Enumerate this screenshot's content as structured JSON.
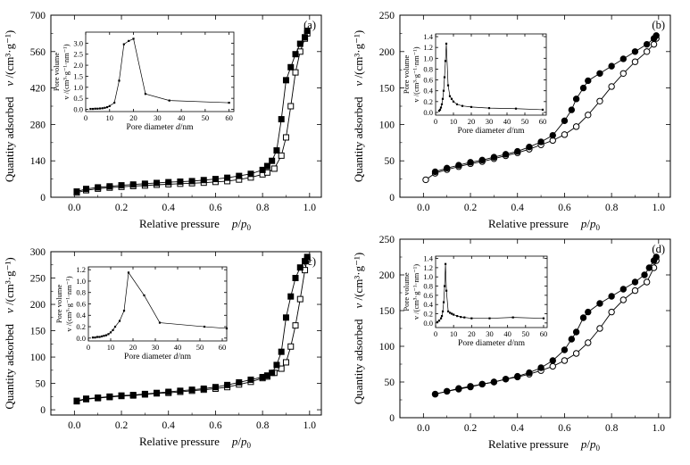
{
  "figure": {
    "panels": [
      {
        "id": "a",
        "panel_label": "(a)",
        "xlabel": "Relative pressure",
        "xlabel_math_main": "p",
        "xlabel_math_slash": "/",
        "xlabel_math_p0": "p",
        "xlabel_math_sub": "0",
        "ylabel": "Quantity adsorbed",
        "ylabel_math_v": "v",
        "ylabel_math_units": " /(cm³·g⁻¹)",
        "inset": {
          "ylabel_top": "v /(cm³·g⁻¹·nm⁻¹)",
          "ylabel_bottom": "Pore volume",
          "xlabel_pre": "Pore diameter ",
          "xlabel_var": "d",
          "xlabel_post": "/nm"
        }
      },
      {
        "id": "b",
        "panel_label": "(b)",
        "xlabel": "Relative pressure",
        "xlabel_math_main": "p",
        "xlabel_math_slash": "/",
        "xlabel_math_p0": "p",
        "xlabel_math_sub": "0",
        "ylabel": "Quantity adsorbed",
        "ylabel_math_v": "v",
        "ylabel_math_units": " /(cm³·g⁻¹)",
        "inset": {
          "ylabel_top": "v /(cm³·g⁻¹·nm⁻¹)",
          "ylabel_bottom": "Pore volume",
          "xlabel_pre": "Pore diameter ",
          "xlabel_var": "d",
          "xlabel_post": "/nm"
        }
      },
      {
        "id": "c",
        "panel_label": "(c)",
        "xlabel": "Relative pressure",
        "xlabel_math_main": "p",
        "xlabel_math_slash": "/",
        "xlabel_math_p0": "p",
        "xlabel_math_sub": "0",
        "ylabel": "Quantity adsorbed",
        "ylabel_math_v": "v",
        "ylabel_math_units": " /(cm³·g⁻¹)",
        "inset": {
          "ylabel_top": "v /(cm³·g⁻¹·nm⁻¹)",
          "ylabel_bottom": "Pore volume",
          "xlabel_pre": "Pore diameter ",
          "xlabel_var": "d",
          "xlabel_post": "/nm"
        }
      },
      {
        "id": "d",
        "panel_label": "(d)",
        "xlabel": "Relative pressure",
        "xlabel_math_main": "p",
        "xlabel_math_slash": "/",
        "xlabel_math_p0": "p",
        "xlabel_math_sub": "0",
        "ylabel": "Quantity adsorbed",
        "ylabel_math_v": "v",
        "ylabel_math_units": " /(cm³·g⁻¹)",
        "inset": {
          "ylabel_top": "v /(cm³·g⁻¹·nm⁻¹)",
          "ylabel_bottom": "Pore volume",
          "xlabel_pre": "Pore diameter ",
          "xlabel_var": "d",
          "xlabel_post": "/nm"
        }
      }
    ]
  },
  "chart_data": [
    {
      "type": "line",
      "panel": "a",
      "title": "(a)",
      "xlabel": "Relative pressure p/p0",
      "ylabel": "Quantity adsorbed v /(cm³·g⁻¹)",
      "xlim": [
        -0.1,
        1.05
      ],
      "ylim": [
        0,
        700
      ],
      "xticks": [
        0.0,
        0.2,
        0.4,
        0.6,
        0.8,
        1.0
      ],
      "yticks": [
        0,
        140,
        280,
        420,
        560,
        700
      ],
      "series": [
        {
          "name": "adsorption",
          "marker": "open-square",
          "x": [
            0.01,
            0.05,
            0.1,
            0.15,
            0.2,
            0.25,
            0.3,
            0.35,
            0.4,
            0.45,
            0.5,
            0.55,
            0.6,
            0.65,
            0.7,
            0.75,
            0.8,
            0.82,
            0.85,
            0.88,
            0.9,
            0.92,
            0.94,
            0.96,
            0.98,
            0.99
          ],
          "y": [
            18,
            27,
            33,
            37,
            40,
            43,
            45,
            48,
            50,
            52,
            54,
            56,
            59,
            62,
            68,
            76,
            88,
            95,
            110,
            160,
            230,
            350,
            480,
            560,
            610,
            630
          ]
        },
        {
          "name": "desorption",
          "marker": "filled-square",
          "x": [
            0.99,
            0.98,
            0.96,
            0.94,
            0.92,
            0.9,
            0.88,
            0.86,
            0.84,
            0.82,
            0.8,
            0.75,
            0.7,
            0.65,
            0.6,
            0.55,
            0.5,
            0.45,
            0.4,
            0.35,
            0.3,
            0.25,
            0.2,
            0.15,
            0.1,
            0.05,
            0.01
          ],
          "y": [
            640,
            615,
            590,
            550,
            500,
            450,
            300,
            180,
            140,
            120,
            105,
            90,
            82,
            75,
            70,
            66,
            62,
            60,
            58,
            55,
            52,
            49,
            46,
            42,
            38,
            32,
            22
          ]
        }
      ],
      "inset": {
        "xlabel": "Pore diameter d/nm",
        "ylabel": "Pore volume v /(cm³·g⁻¹·nm⁻¹)",
        "xlim": [
          0,
          62
        ],
        "ylim": [
          -0.1,
          3.5
        ],
        "xticks": [
          0,
          10,
          20,
          30,
          40,
          50,
          60
        ],
        "yticks": [
          0.0,
          0.5,
          1.0,
          1.5,
          2.0,
          2.5,
          3.0
        ],
        "x": [
          2,
          3,
          4,
          5,
          6,
          7,
          8,
          9,
          10,
          12,
          14,
          16,
          18,
          20,
          25,
          35,
          60
        ],
        "y": [
          0.02,
          0.02,
          0.03,
          0.03,
          0.04,
          0.05,
          0.07,
          0.1,
          0.15,
          0.3,
          1.3,
          2.95,
          3.1,
          3.2,
          0.7,
          0.4,
          0.3
        ]
      }
    },
    {
      "type": "line",
      "panel": "b",
      "title": "(b)",
      "xlabel": "Relative pressure p/p0",
      "ylabel": "Quantity adsorbed v /(cm³·g⁻¹)",
      "xlim": [
        -0.1,
        1.05
      ],
      "ylim": [
        0,
        250
      ],
      "xticks": [
        0.0,
        0.2,
        0.4,
        0.6,
        0.8,
        1.0
      ],
      "yticks": [
        0,
        50,
        100,
        150,
        200,
        250
      ],
      "series": [
        {
          "name": "adsorption",
          "marker": "open-circle",
          "x": [
            0.01,
            0.05,
            0.1,
            0.15,
            0.2,
            0.25,
            0.3,
            0.35,
            0.4,
            0.45,
            0.5,
            0.55,
            0.6,
            0.65,
            0.7,
            0.75,
            0.8,
            0.85,
            0.9,
            0.95,
            0.98,
            0.99
          ],
          "y": [
            24,
            33,
            38,
            42,
            46,
            49,
            53,
            57,
            61,
            66,
            72,
            78,
            86,
            97,
            113,
            132,
            152,
            170,
            186,
            200,
            210,
            218
          ]
        },
        {
          "name": "desorption",
          "marker": "filled-circle",
          "x": [
            0.99,
            0.98,
            0.95,
            0.9,
            0.85,
            0.8,
            0.75,
            0.7,
            0.68,
            0.65,
            0.63,
            0.6,
            0.55,
            0.5,
            0.45,
            0.4,
            0.35,
            0.3,
            0.25,
            0.2,
            0.15,
            0.1,
            0.05
          ],
          "y": [
            222,
            218,
            210,
            200,
            190,
            180,
            170,
            160,
            150,
            135,
            120,
            105,
            85,
            76,
            69,
            63,
            59,
            55,
            51,
            48,
            44,
            40,
            35
          ]
        }
      ],
      "inset": {
        "xlabel": "Pore diameter d/nm",
        "ylabel": "Pore volume v /(cm³·g⁻¹·nm⁻¹)",
        "xlim": [
          0,
          62
        ],
        "ylim": [
          -0.05,
          1.45
        ],
        "xticks": [
          0,
          10,
          20,
          30,
          40,
          50,
          60
        ],
        "yticks": [
          0.0,
          0.2,
          0.4,
          0.6,
          0.8,
          1.0,
          1.2,
          1.4
        ],
        "x": [
          2,
          2.5,
          3,
          3.5,
          4,
          4.5,
          5,
          5.5,
          6,
          7,
          8,
          9,
          10,
          12,
          15,
          20,
          30,
          45,
          60
        ],
        "y": [
          0.03,
          0.05,
          0.09,
          0.15,
          0.25,
          0.4,
          0.65,
          0.95,
          1.27,
          0.5,
          0.3,
          0.25,
          0.2,
          0.15,
          0.12,
          0.1,
          0.08,
          0.07,
          0.05
        ]
      }
    },
    {
      "type": "line",
      "panel": "c",
      "title": "(c)",
      "xlabel": "Relative pressure p/p0",
      "ylabel": "Quantity adsorbed v /(cm³·g⁻¹)",
      "xlim": [
        -0.1,
        1.05
      ],
      "ylim": [
        -10,
        300
      ],
      "xticks": [
        0.0,
        0.2,
        0.4,
        0.6,
        0.8,
        1.0
      ],
      "yticks": [
        0,
        50,
        100,
        150,
        200,
        250,
        300
      ],
      "series": [
        {
          "name": "adsorption",
          "marker": "open-square",
          "x": [
            0.01,
            0.05,
            0.1,
            0.15,
            0.2,
            0.25,
            0.3,
            0.35,
            0.4,
            0.45,
            0.5,
            0.55,
            0.6,
            0.65,
            0.7,
            0.75,
            0.8,
            0.82,
            0.85,
            0.88,
            0.9,
            0.92,
            0.94,
            0.96,
            0.98,
            0.99
          ],
          "y": [
            16,
            20,
            22,
            24,
            26,
            27,
            29,
            31,
            32,
            34,
            36,
            38,
            40,
            43,
            48,
            53,
            60,
            63,
            70,
            78,
            90,
            120,
            160,
            210,
            265,
            285
          ]
        },
        {
          "name": "desorption",
          "marker": "filled-square",
          "x": [
            0.99,
            0.98,
            0.96,
            0.94,
            0.92,
            0.9,
            0.88,
            0.86,
            0.84,
            0.82,
            0.8,
            0.75,
            0.7,
            0.65,
            0.6,
            0.55,
            0.5,
            0.45,
            0.4,
            0.35,
            0.3,
            0.25,
            0.2,
            0.15,
            0.1,
            0.05,
            0.01
          ],
          "y": [
            290,
            282,
            270,
            250,
            215,
            175,
            110,
            85,
            70,
            65,
            62,
            57,
            52,
            47,
            43,
            40,
            38,
            36,
            34,
            32,
            30,
            28,
            27,
            25,
            23,
            21,
            17
          ]
        }
      ],
      "inset": {
        "xlabel": "Pore diameter d/nm",
        "ylabel": "Pore volume v /(cm³·g⁻¹·nm⁻¹)",
        "xlim": [
          0,
          62
        ],
        "ylim": [
          -0.05,
          1.25
        ],
        "xticks": [
          0,
          10,
          20,
          30,
          40,
          50,
          60
        ],
        "yticks": [
          0.0,
          0.2,
          0.4,
          0.6,
          0.8,
          1.0,
          1.2
        ],
        "x": [
          2,
          3,
          4,
          5,
          6,
          7,
          8,
          9,
          10,
          11,
          12,
          14,
          16,
          18,
          25,
          32,
          52,
          62
        ],
        "y": [
          0.01,
          0.01,
          0.02,
          0.02,
          0.03,
          0.04,
          0.05,
          0.07,
          0.1,
          0.14,
          0.2,
          0.3,
          0.48,
          1.15,
          0.75,
          0.27,
          0.2,
          0.17
        ]
      }
    },
    {
      "type": "line",
      "panel": "d",
      "title": "(d)",
      "xlabel": "Relative pressure p/p0",
      "ylabel": "Quantity adsorbed v /(cm³·g⁻¹)",
      "xlim": [
        -0.1,
        1.05
      ],
      "ylim": [
        0,
        250
      ],
      "xticks": [
        0.0,
        0.2,
        0.4,
        0.6,
        0.8,
        1.0
      ],
      "yticks": [
        0,
        50,
        100,
        150,
        200,
        250
      ],
      "series": [
        {
          "name": "adsorption",
          "marker": "open-circle",
          "x": [
            0.05,
            0.1,
            0.15,
            0.2,
            0.25,
            0.3,
            0.35,
            0.4,
            0.45,
            0.5,
            0.55,
            0.6,
            0.65,
            0.7,
            0.75,
            0.8,
            0.85,
            0.9,
            0.95,
            0.98,
            0.99
          ],
          "y": [
            33,
            37,
            41,
            44,
            47,
            50,
            54,
            57,
            61,
            66,
            72,
            80,
            90,
            105,
            125,
            148,
            165,
            178,
            190,
            210,
            220
          ]
        },
        {
          "name": "desorption",
          "marker": "filled-circle",
          "x": [
            0.99,
            0.98,
            0.96,
            0.94,
            0.9,
            0.85,
            0.8,
            0.75,
            0.7,
            0.68,
            0.65,
            0.63,
            0.6,
            0.55,
            0.5,
            0.45,
            0.4,
            0.35,
            0.3,
            0.25,
            0.2,
            0.15,
            0.1,
            0.05
          ],
          "y": [
            225,
            220,
            210,
            200,
            190,
            180,
            170,
            160,
            148,
            140,
            120,
            110,
            95,
            80,
            70,
            63,
            58,
            54,
            50,
            47,
            43,
            40,
            37,
            33
          ]
        }
      ],
      "inset": {
        "xlabel": "Pore diameter d/nm",
        "ylabel": "Pore volume v /(cm³·g⁻¹·nm⁻¹)",
        "xlim": [
          0,
          62
        ],
        "ylim": [
          -0.1,
          1.45
        ],
        "xticks": [
          0,
          10,
          20,
          30,
          40,
          50,
          60
        ],
        "yticks": [
          0.0,
          0.2,
          0.4,
          0.6,
          0.8,
          1.0,
          1.2,
          1.4
        ],
        "x": [
          1,
          2,
          3,
          3.5,
          4,
          4.5,
          5,
          5.5,
          6,
          7,
          8,
          9,
          10,
          12,
          14,
          16,
          20,
          30,
          43,
          60
        ],
        "y": [
          0.02,
          0.05,
          0.1,
          0.15,
          0.25,
          0.45,
          0.8,
          1.28,
          0.7,
          0.25,
          0.22,
          0.2,
          0.18,
          0.15,
          0.13,
          0.12,
          0.1,
          0.1,
          0.12,
          0.1
        ]
      }
    }
  ]
}
